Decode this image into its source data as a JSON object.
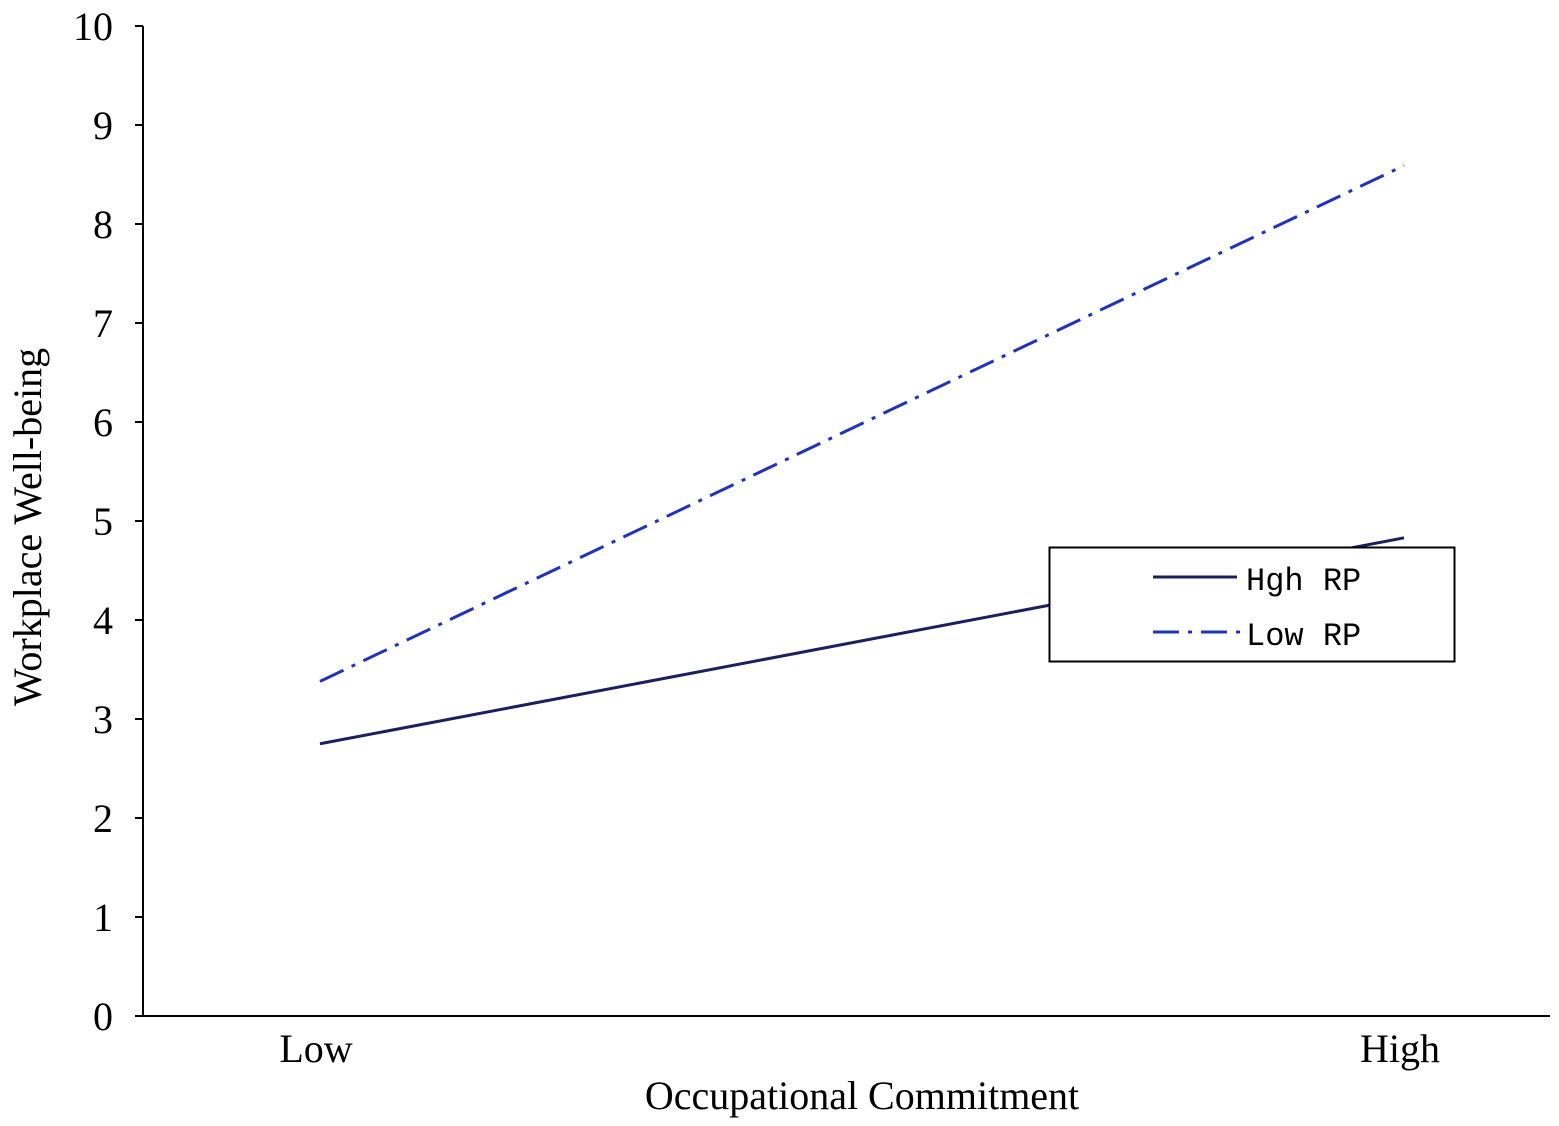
{
  "chart_data": {
    "type": "line",
    "xlabel": "Occupational Commitment",
    "ylabel": "Workplace Well-being",
    "categories": [
      "Low",
      "High"
    ],
    "ylim": [
      0,
      10
    ],
    "yticks": [
      0,
      1,
      2,
      3,
      4,
      5,
      6,
      7,
      8,
      9,
      10
    ],
    "grid": false,
    "legend_position": "center-right",
    "series": [
      {
        "name": "Hgh RP",
        "values": [
          2.75,
          4.83
        ],
        "color": "#1c1f5e",
        "dash": "solid"
      },
      {
        "name": "Low RP",
        "values": [
          3.38,
          8.59
        ],
        "color": "#2233bb",
        "dash": "dash-dot"
      }
    ]
  }
}
